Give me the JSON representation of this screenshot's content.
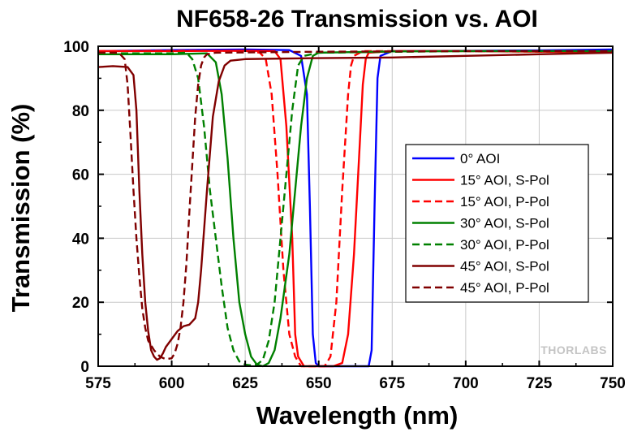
{
  "chart_data": {
    "type": "line",
    "title": "NF658-26 Transmission vs. AOI",
    "xlabel": "Wavelength (nm)",
    "ylabel": "Transmission (%)",
    "xlim": [
      575,
      750
    ],
    "ylim": [
      0,
      100
    ],
    "x_ticks": [
      "575",
      "600",
      "625",
      "650",
      "675",
      "700",
      "725",
      "750"
    ],
    "y_ticks": [
      "0",
      "20",
      "40",
      "60",
      "80",
      "100"
    ],
    "grid": true,
    "legend_position": "center-right",
    "watermark": "THORLABS",
    "series": [
      {
        "name": "0° AOI",
        "color": "#0000ff",
        "dash": "solid",
        "points": [
          [
            575,
            98.5
          ],
          [
            600,
            98.8
          ],
          [
            625,
            99
          ],
          [
            640,
            98.8
          ],
          [
            644,
            97
          ],
          [
            646,
            85
          ],
          [
            647,
            50
          ],
          [
            648,
            10
          ],
          [
            649,
            1
          ],
          [
            650,
            0
          ],
          [
            660,
            0
          ],
          [
            667,
            0
          ],
          [
            668,
            5
          ],
          [
            669,
            50
          ],
          [
            670,
            90
          ],
          [
            671,
            97
          ],
          [
            675,
            98.5
          ],
          [
            700,
            98.6
          ],
          [
            725,
            98.7
          ],
          [
            750,
            99
          ]
        ]
      },
      {
        "name": "15° AOI, S-Pol",
        "color": "#ff0000",
        "dash": "solid",
        "points": [
          [
            575,
            98.5
          ],
          [
            600,
            98.5
          ],
          [
            625,
            98.6
          ],
          [
            635,
            98.5
          ],
          [
            637,
            96
          ],
          [
            639,
            75
          ],
          [
            641,
            40
          ],
          [
            642,
            10
          ],
          [
            643,
            3
          ],
          [
            645,
            0
          ],
          [
            655,
            0
          ],
          [
            658,
            1
          ],
          [
            660,
            10
          ],
          [
            662,
            35
          ],
          [
            664,
            70
          ],
          [
            665,
            88
          ],
          [
            666,
            96
          ],
          [
            667,
            98
          ],
          [
            675,
            98.5
          ],
          [
            700,
            98.5
          ],
          [
            725,
            98.3
          ],
          [
            750,
            98.2
          ]
        ]
      },
      {
        "name": "15° AOI, P-Pol",
        "color": "#ff0000",
        "dash": "dashed",
        "points": [
          [
            575,
            98.5
          ],
          [
            600,
            98.6
          ],
          [
            625,
            98.6
          ],
          [
            630,
            98
          ],
          [
            632,
            96
          ],
          [
            634,
            85
          ],
          [
            636,
            60
          ],
          [
            638,
            30
          ],
          [
            640,
            10
          ],
          [
            642,
            3
          ],
          [
            644,
            0
          ],
          [
            652,
            0
          ],
          [
            654,
            3
          ],
          [
            656,
            20
          ],
          [
            658,
            55
          ],
          [
            660,
            85
          ],
          [
            661,
            94
          ],
          [
            662,
            97
          ],
          [
            665,
            98.5
          ],
          [
            700,
            98.5
          ],
          [
            725,
            98.3
          ],
          [
            750,
            98.2
          ]
        ]
      },
      {
        "name": "30° AOI, S-Pol",
        "color": "#008000",
        "dash": "solid",
        "points": [
          [
            575,
            97.5
          ],
          [
            600,
            97.5
          ],
          [
            612,
            97.8
          ],
          [
            615,
            95
          ],
          [
            617,
            85
          ],
          [
            619,
            65
          ],
          [
            621,
            40
          ],
          [
            623,
            20
          ],
          [
            625,
            10
          ],
          [
            627,
            3
          ],
          [
            629,
            0.5
          ],
          [
            631,
            0
          ],
          [
            633,
            1
          ],
          [
            635,
            5
          ],
          [
            637,
            15
          ],
          [
            640,
            35
          ],
          [
            642,
            55
          ],
          [
            644,
            75
          ],
          [
            646,
            90
          ],
          [
            648,
            97
          ],
          [
            650,
            98
          ],
          [
            675,
            98.4
          ],
          [
            700,
            98.5
          ],
          [
            725,
            98.5
          ],
          [
            750,
            98.5
          ]
        ]
      },
      {
        "name": "30° AOI, P-Pol",
        "color": "#008000",
        "dash": "dashed",
        "points": [
          [
            575,
            97.8
          ],
          [
            600,
            97.8
          ],
          [
            605,
            98
          ],
          [
            607,
            96
          ],
          [
            609,
            90
          ],
          [
            611,
            75
          ],
          [
            613,
            55
          ],
          [
            615,
            40
          ],
          [
            617,
            25
          ],
          [
            619,
            12
          ],
          [
            621,
            5
          ],
          [
            623,
            1.5
          ],
          [
            625,
            0.5
          ],
          [
            627,
            0.3
          ],
          [
            629,
            0.5
          ],
          [
            631,
            2
          ],
          [
            633,
            8
          ],
          [
            635,
            20
          ],
          [
            637,
            40
          ],
          [
            639,
            60
          ],
          [
            641,
            80
          ],
          [
            643,
            94
          ],
          [
            645,
            97
          ],
          [
            650,
            98
          ],
          [
            700,
            98.5
          ],
          [
            750,
            98.5
          ]
        ]
      },
      {
        "name": "45° AOI, S-Pol",
        "color": "#800000",
        "dash": "solid",
        "points": [
          [
            575,
            93.5
          ],
          [
            580,
            93.8
          ],
          [
            585,
            93.5
          ],
          [
            587,
            91
          ],
          [
            588,
            80
          ],
          [
            589,
            55
          ],
          [
            590,
            35
          ],
          [
            591,
            20
          ],
          [
            592,
            11
          ],
          [
            593,
            5
          ],
          [
            594,
            3
          ],
          [
            595,
            2
          ],
          [
            596,
            2.5
          ],
          [
            597,
            4
          ],
          [
            598,
            6
          ],
          [
            600,
            8.5
          ],
          [
            602,
            11
          ],
          [
            604,
            12.5
          ],
          [
            606,
            13
          ],
          [
            608,
            15
          ],
          [
            609,
            20
          ],
          [
            610,
            30
          ],
          [
            612,
            55
          ],
          [
            614,
            78
          ],
          [
            616,
            89
          ],
          [
            618,
            94
          ],
          [
            620,
            95.5
          ],
          [
            625,
            96
          ],
          [
            650,
            96.3
          ],
          [
            675,
            96.5
          ],
          [
            700,
            97
          ],
          [
            725,
            97.5
          ],
          [
            750,
            98
          ]
        ]
      },
      {
        "name": "45° AOI, P-Pol",
        "color": "#800000",
        "dash": "dashed",
        "points": [
          [
            575,
            98
          ],
          [
            582,
            98
          ],
          [
            584,
            96
          ],
          [
            585,
            88
          ],
          [
            586,
            72
          ],
          [
            587,
            55
          ],
          [
            588,
            40
          ],
          [
            589,
            28
          ],
          [
            590,
            18
          ],
          [
            591,
            12
          ],
          [
            592,
            8
          ],
          [
            594,
            5
          ],
          [
            596,
            3
          ],
          [
            598,
            2.2
          ],
          [
            600,
            2.5
          ],
          [
            601,
            4
          ],
          [
            602,
            7
          ],
          [
            603,
            12
          ],
          [
            604,
            20
          ],
          [
            605,
            32
          ],
          [
            606,
            48
          ],
          [
            607,
            63
          ],
          [
            608,
            78
          ],
          [
            609,
            88
          ],
          [
            610,
            94
          ],
          [
            611,
            96.5
          ],
          [
            612,
            97.5
          ],
          [
            615,
            98
          ],
          [
            650,
            98.3
          ],
          [
            700,
            98.5
          ],
          [
            750,
            98.5
          ]
        ]
      }
    ]
  }
}
